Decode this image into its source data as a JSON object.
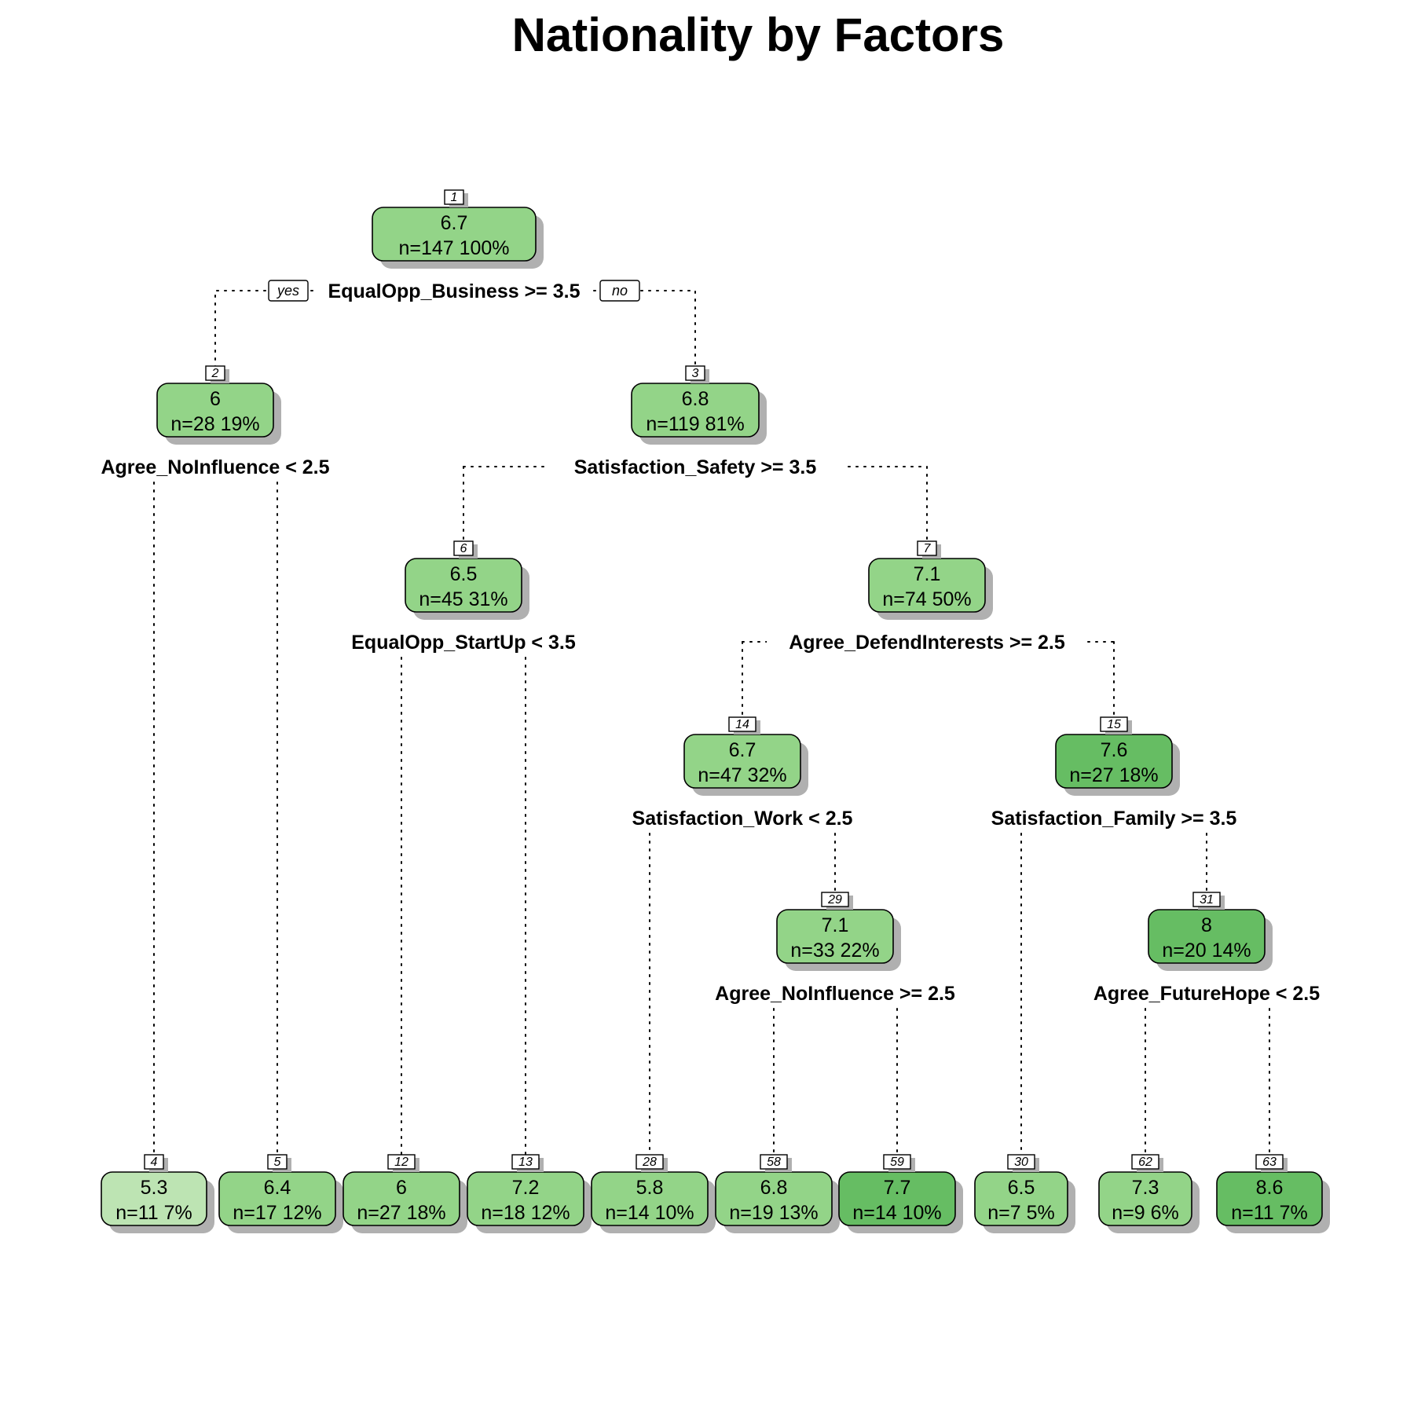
{
  "title": "Nationality by Factors",
  "branch_labels": {
    "yes": "yes",
    "no": "no"
  },
  "colors": {
    "light": "#bde4b3",
    "medium": "#93d488",
    "dark": "#66bd63"
  },
  "nodes": [
    {
      "id": "1",
      "value": "6.7",
      "n": "n=147",
      "pct": "100%",
      "split": "EqualOpp_Business >= 3.5",
      "shade": "medium",
      "children": [
        "2",
        "3"
      ]
    },
    {
      "id": "2",
      "value": "6",
      "n": "n=28",
      "pct": "19%",
      "split": "Agree_NoInfluence < 2.5",
      "shade": "medium",
      "children": [
        "4",
        "5"
      ]
    },
    {
      "id": "3",
      "value": "6.8",
      "n": "n=119",
      "pct": "81%",
      "split": "Satisfaction_Safety >= 3.5",
      "shade": "medium",
      "children": [
        "6",
        "7"
      ]
    },
    {
      "id": "6",
      "value": "6.5",
      "n": "n=45",
      "pct": "31%",
      "split": "EqualOpp_StartUp < 3.5",
      "shade": "medium",
      "children": [
        "12",
        "13"
      ]
    },
    {
      "id": "7",
      "value": "7.1",
      "n": "n=74",
      "pct": "50%",
      "split": "Agree_DefendInterests >= 2.5",
      "shade": "medium",
      "children": [
        "14",
        "15"
      ]
    },
    {
      "id": "14",
      "value": "6.7",
      "n": "n=47",
      "pct": "32%",
      "split": "Satisfaction_Work < 2.5",
      "shade": "medium",
      "children": [
        "28",
        "29"
      ]
    },
    {
      "id": "15",
      "value": "7.6",
      "n": "n=27",
      "pct": "18%",
      "split": "Satisfaction_Family >= 3.5",
      "shade": "dark",
      "children": [
        "30",
        "31"
      ]
    },
    {
      "id": "29",
      "value": "7.1",
      "n": "n=33",
      "pct": "22%",
      "split": "Agree_NoInfluence >= 2.5",
      "shade": "medium",
      "children": [
        "58",
        "59"
      ]
    },
    {
      "id": "31",
      "value": "8",
      "n": "n=20",
      "pct": "14%",
      "split": "Agree_FutureHope < 2.5",
      "shade": "dark",
      "children": [
        "62",
        "63"
      ]
    },
    {
      "id": "4",
      "value": "5.3",
      "n": "n=11",
      "pct": "7%",
      "split": "",
      "shade": "light",
      "children": []
    },
    {
      "id": "5",
      "value": "6.4",
      "n": "n=17",
      "pct": "12%",
      "split": "",
      "shade": "medium",
      "children": []
    },
    {
      "id": "12",
      "value": "6",
      "n": "n=27",
      "pct": "18%",
      "split": "",
      "shade": "medium",
      "children": []
    },
    {
      "id": "13",
      "value": "7.2",
      "n": "n=18",
      "pct": "12%",
      "split": "",
      "shade": "medium",
      "children": []
    },
    {
      "id": "28",
      "value": "5.8",
      "n": "n=14",
      "pct": "10%",
      "split": "",
      "shade": "medium",
      "children": []
    },
    {
      "id": "58",
      "value": "6.8",
      "n": "n=19",
      "pct": "13%",
      "split": "",
      "shade": "medium",
      "children": []
    },
    {
      "id": "59",
      "value": "7.7",
      "n": "n=14",
      "pct": "10%",
      "split": "",
      "shade": "dark",
      "children": []
    },
    {
      "id": "30",
      "value": "6.5",
      "n": "n=7",
      "pct": "5%",
      "split": "",
      "shade": "medium",
      "children": []
    },
    {
      "id": "62",
      "value": "7.3",
      "n": "n=9",
      "pct": "6%",
      "split": "",
      "shade": "medium",
      "children": []
    },
    {
      "id": "63",
      "value": "8.6",
      "n": "n=11",
      "pct": "7%",
      "split": "",
      "shade": "dark",
      "children": []
    }
  ]
}
